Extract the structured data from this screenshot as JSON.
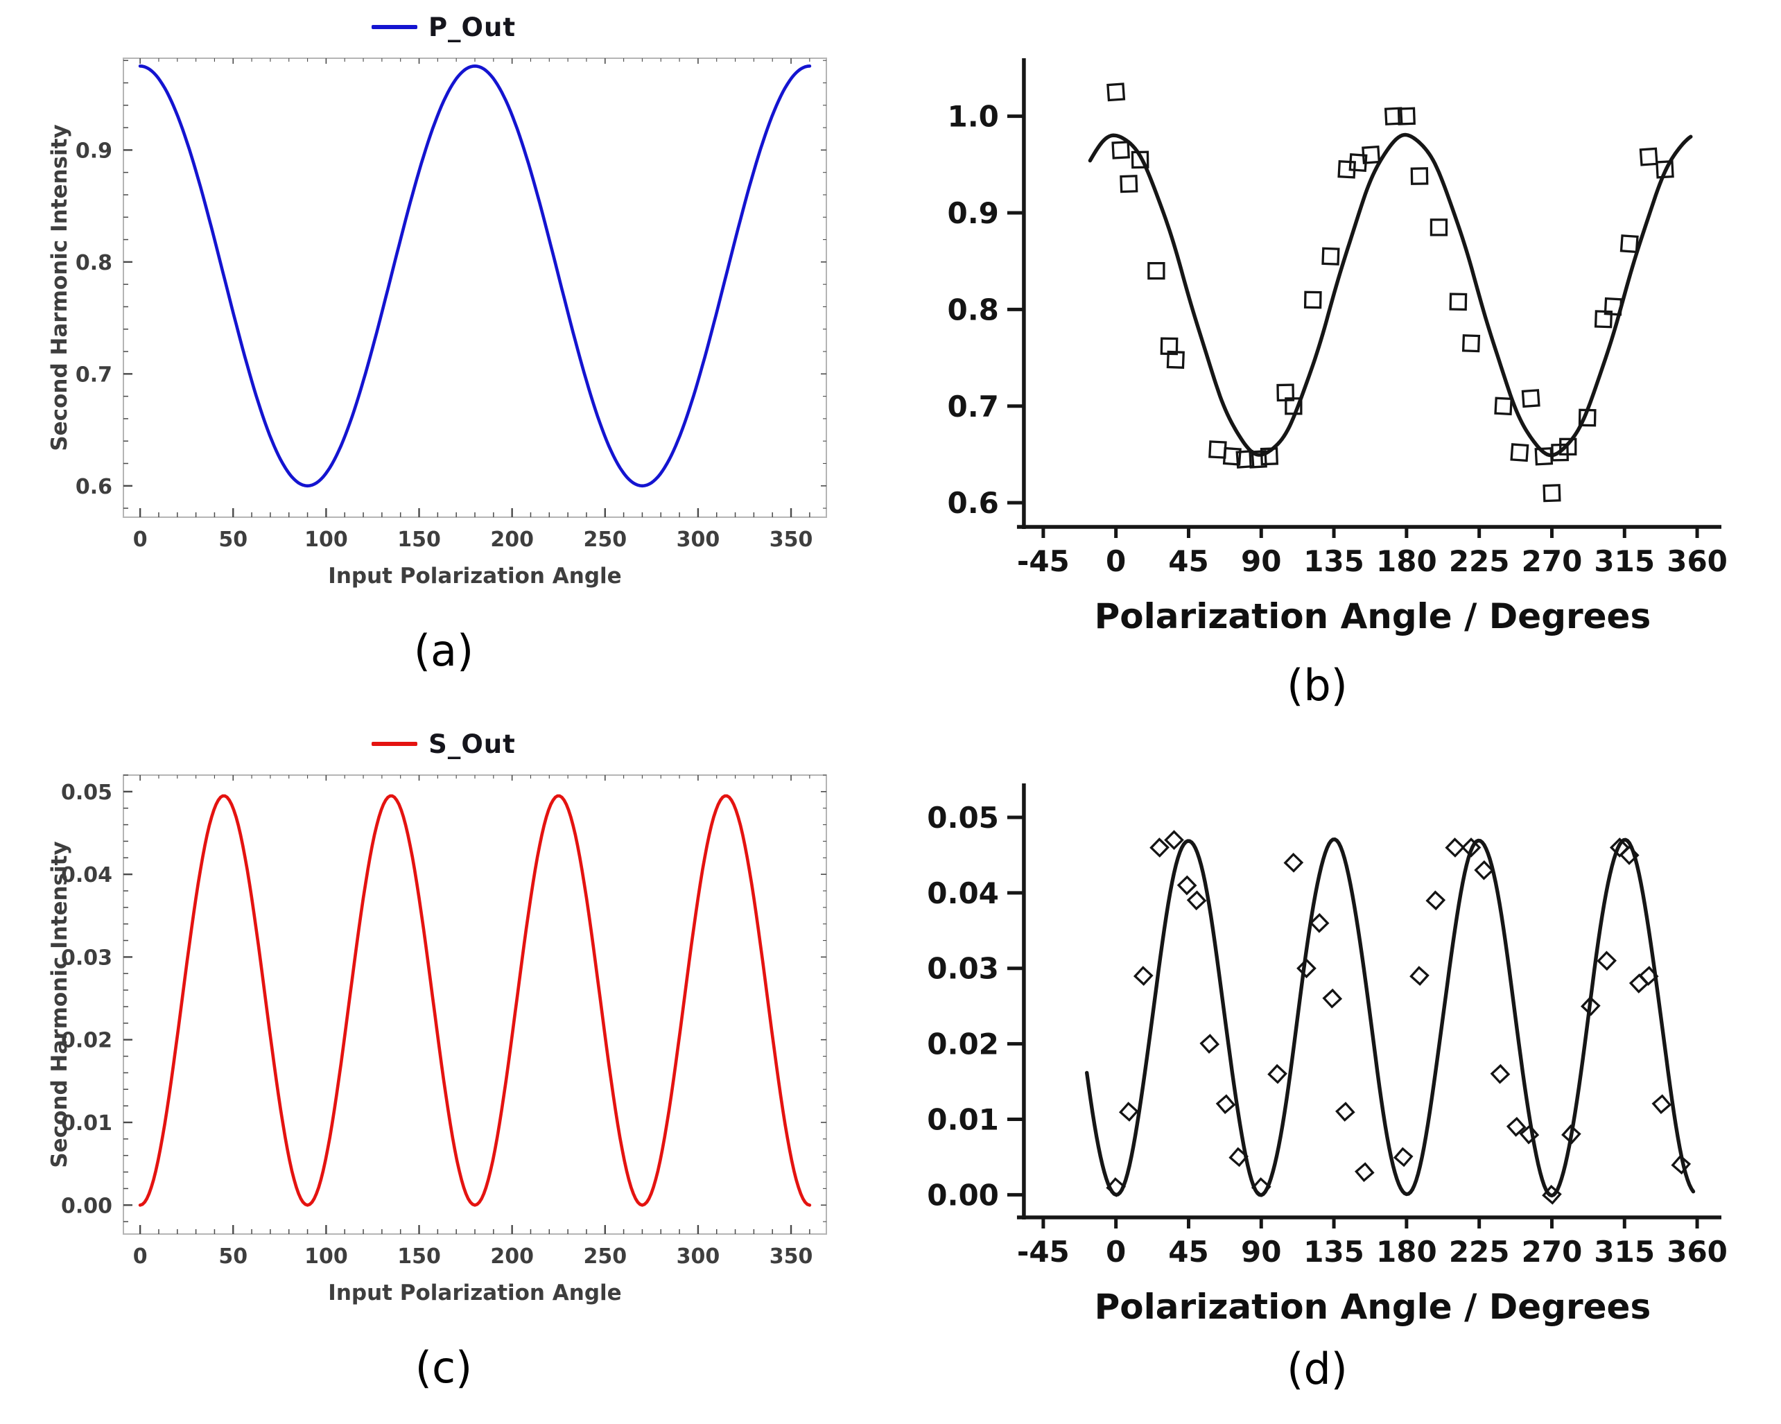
{
  "figure": {
    "background": "#ffffff",
    "panels": [
      {
        "id": "a",
        "caption": "(a)"
      },
      {
        "id": "b",
        "caption": "(b)"
      },
      {
        "id": "c",
        "caption": "(c)"
      },
      {
        "id": "d",
        "caption": "(d)"
      }
    ]
  },
  "chart_data": [
    {
      "id": "a",
      "type": "line",
      "style": "clean",
      "color": "#1414d0",
      "legend": {
        "label": "P_Out"
      },
      "xlabel": "Input  Polarization Angle",
      "ylabel": "Second Harmonic Intensity",
      "xlim": [
        -9,
        369
      ],
      "ylim": [
        0.572,
        0.982
      ],
      "xticks": [
        0,
        50,
        100,
        150,
        200,
        250,
        300,
        350
      ],
      "yticks": [
        0.6,
        0.7,
        0.8,
        0.9
      ],
      "ytick_decimals": 1,
      "curve": {
        "description": "I = 0.7875 + 0.1875*cos(2*theta); max 0.975 at 0/180/360 deg, min 0.600 at 90/270 deg",
        "offset": 0.7875,
        "amplitude": 0.1875,
        "freq_per_deg": 2,
        "phase_deg": 0,
        "domain": [
          0,
          360
        ]
      }
    },
    {
      "id": "b",
      "type": "scatter-with-fit",
      "style": "scanned",
      "color": "#161616",
      "marker": "square",
      "marker_size": 22,
      "xlabel": "Polarization Angle / Degrees",
      "xlim": [
        -75,
        375
      ],
      "ylim": [
        0.575,
        1.06
      ],
      "axis_x": -57,
      "xticks": [
        -45,
        0,
        45,
        90,
        135,
        180,
        225,
        270,
        315,
        360
      ],
      "yticks": [
        0.6,
        0.7,
        0.8,
        0.9,
        1.0
      ],
      "ytick_decimals": 1,
      "curve": {
        "description": "fit: I = 0.815 + 0.165*cos(2*theta); peaks ~0.98 at 0/180 deg, valleys ~0.65 at 90/270 deg",
        "offset": 0.815,
        "amplitude": 0.165,
        "freq_per_deg": 2,
        "phase_deg": 0,
        "domain": [
          -16,
          356
        ]
      },
      "points": [
        [
          0,
          1.025
        ],
        [
          3,
          0.965
        ],
        [
          8,
          0.93
        ],
        [
          15,
          0.955
        ],
        [
          25,
          0.84
        ],
        [
          33,
          0.762
        ],
        [
          37,
          0.748
        ],
        [
          63,
          0.655
        ],
        [
          72,
          0.648
        ],
        [
          80,
          0.645
        ],
        [
          88,
          0.645
        ],
        [
          95,
          0.648
        ],
        [
          105,
          0.714
        ],
        [
          110,
          0.7
        ],
        [
          122,
          0.81
        ],
        [
          133,
          0.855
        ],
        [
          143,
          0.945
        ],
        [
          150,
          0.952
        ],
        [
          158,
          0.96
        ],
        [
          172,
          1.0
        ],
        [
          180,
          1.0
        ],
        [
          188,
          0.938
        ],
        [
          200,
          0.885
        ],
        [
          212,
          0.808
        ],
        [
          220,
          0.765
        ],
        [
          240,
          0.7
        ],
        [
          250,
          0.652
        ],
        [
          257,
          0.708
        ],
        [
          265,
          0.648
        ],
        [
          270,
          0.61
        ],
        [
          275,
          0.652
        ],
        [
          280,
          0.658
        ],
        [
          292,
          0.688
        ],
        [
          302,
          0.79
        ],
        [
          308,
          0.803
        ],
        [
          318,
          0.868
        ],
        [
          330,
          0.958
        ],
        [
          340,
          0.945
        ]
      ]
    },
    {
      "id": "c",
      "type": "line",
      "style": "clean",
      "color": "#e41310",
      "legend": {
        "label": "S_Out"
      },
      "xlabel": "Input  Polarization Angle",
      "ylabel": "Second Harmonic Intensity",
      "xlim": [
        -9,
        369
      ],
      "ylim": [
        -0.0035,
        0.052
      ],
      "xticks": [
        0,
        50,
        100,
        150,
        200,
        250,
        300,
        350
      ],
      "yticks": [
        0.0,
        0.01,
        0.02,
        0.03,
        0.04,
        0.05
      ],
      "ytick_decimals": 2,
      "curve": {
        "description": "I = 0.0495*sin^2(2*theta) = 0.02475 - 0.02475*cos(4*theta); max 0.0495 at 45/135/225/315 deg, min 0 at 0/90/180/270/360 deg",
        "offset": 0.02475,
        "amplitude": -0.02475,
        "freq_per_deg": 4,
        "phase_deg": 0,
        "domain": [
          0,
          360
        ]
      }
    },
    {
      "id": "d",
      "type": "scatter-with-fit",
      "style": "scanned",
      "color": "#161616",
      "marker": "diamond",
      "marker_size": 17,
      "xlabel": "Polarization Angle / Degrees",
      "xlim": [
        -75,
        375
      ],
      "ylim": [
        -0.003,
        0.0545
      ],
      "axis_x": -57,
      "xticks": [
        -45,
        0,
        45,
        90,
        135,
        180,
        225,
        270,
        315,
        360
      ],
      "yticks": [
        0.0,
        0.01,
        0.02,
        0.03,
        0.04,
        0.05
      ],
      "ytick_decimals": 2,
      "curve": {
        "description": "fit: I = 0.047*sin^2(2*theta); peaks ~0.047 at 45/135/225/315 deg, zeros at 0/90/180/270/360 deg",
        "offset": 0.0235,
        "amplitude": -0.0235,
        "freq_per_deg": 4,
        "phase_deg": 0,
        "domain": [
          -18,
          358
        ]
      },
      "points": [
        [
          0,
          0.001
        ],
        [
          8,
          0.011
        ],
        [
          17,
          0.029
        ],
        [
          27,
          0.046
        ],
        [
          36,
          0.047
        ],
        [
          44,
          0.041
        ],
        [
          50,
          0.039
        ],
        [
          58,
          0.02
        ],
        [
          68,
          0.012
        ],
        [
          76,
          0.005
        ],
        [
          90,
          0.001
        ],
        [
          100,
          0.016
        ],
        [
          110,
          0.044
        ],
        [
          118,
          0.03
        ],
        [
          126,
          0.036
        ],
        [
          134,
          0.026
        ],
        [
          142,
          0.011
        ],
        [
          154,
          0.003
        ],
        [
          178,
          0.005
        ],
        [
          188,
          0.029
        ],
        [
          198,
          0.039
        ],
        [
          210,
          0.046
        ],
        [
          220,
          0.046
        ],
        [
          228,
          0.043
        ],
        [
          238,
          0.016
        ],
        [
          248,
          0.009
        ],
        [
          256,
          0.008
        ],
        [
          270,
          0.0
        ],
        [
          282,
          0.008
        ],
        [
          294,
          0.025
        ],
        [
          304,
          0.031
        ],
        [
          312,
          0.046
        ],
        [
          318,
          0.045
        ],
        [
          324,
          0.028
        ],
        [
          330,
          0.029
        ],
        [
          338,
          0.012
        ],
        [
          350,
          0.004
        ]
      ]
    }
  ]
}
